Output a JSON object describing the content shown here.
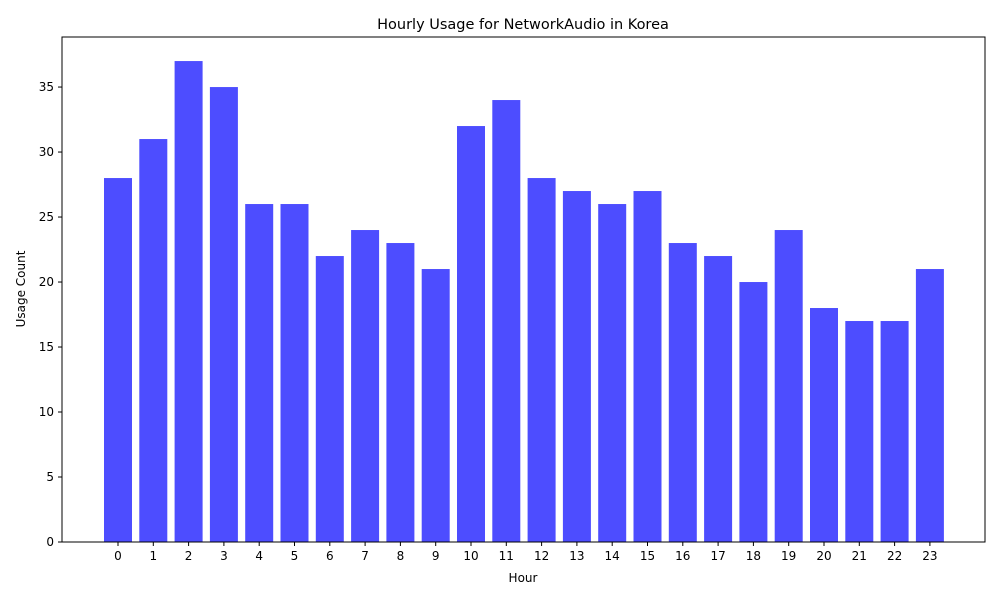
{
  "chart_data": {
    "type": "bar",
    "title": "Hourly Usage for NetworkAudio in Korea",
    "xlabel": "Hour",
    "ylabel": "Usage Count",
    "categories": [
      "0",
      "1",
      "2",
      "3",
      "4",
      "5",
      "6",
      "7",
      "8",
      "9",
      "10",
      "11",
      "12",
      "13",
      "14",
      "15",
      "16",
      "17",
      "18",
      "19",
      "20",
      "21",
      "22",
      "23"
    ],
    "values": [
      28,
      31,
      37,
      35,
      26,
      26,
      22,
      24,
      23,
      21,
      32,
      34,
      28,
      27,
      26,
      27,
      23,
      22,
      20,
      24,
      18,
      17,
      17,
      21
    ],
    "ylim": [
      0,
      38.85
    ],
    "yticks": [
      0,
      5,
      10,
      15,
      20,
      25,
      30,
      35
    ],
    "bar_color": "#4d4dff",
    "grid": false,
    "legend": "none"
  }
}
